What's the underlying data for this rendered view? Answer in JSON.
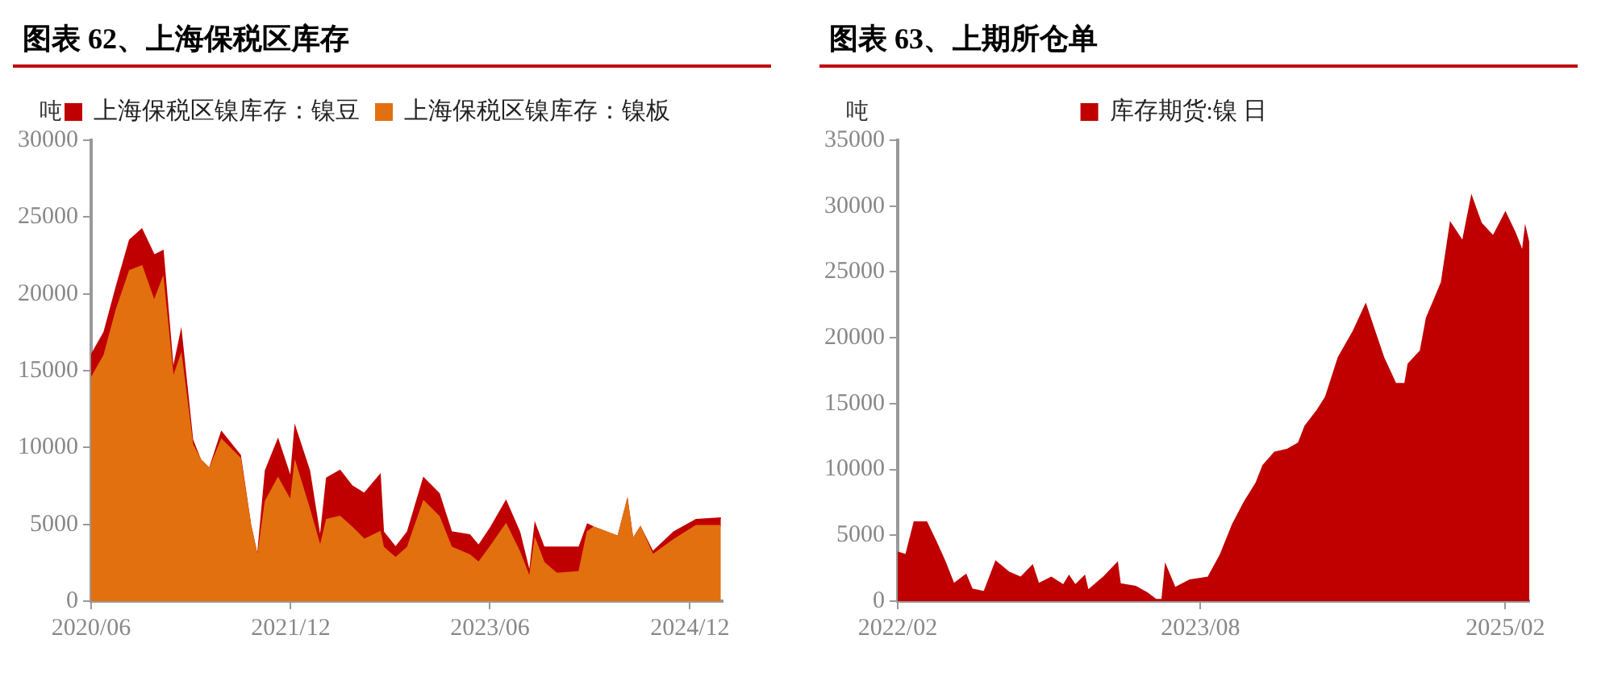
{
  "chart_data": [
    {
      "type": "area",
      "title": "图表 62、上海保税区库存",
      "ylabel": "吨",
      "stacked": true,
      "legend": "top",
      "grid": false,
      "marker": "none",
      "x": [
        "2020-06-01",
        "2020-07-07",
        "2020-08-10",
        "2020-09-15",
        "2020-10-18",
        "2020-11-21",
        "2020-12-15",
        "2021-01-12",
        "2021-02-03",
        "2021-03-06",
        "2021-03-28",
        "2021-04-22",
        "2021-05-25",
        "2021-07-15",
        "2021-08-12",
        "2021-09-01",
        "2021-09-23",
        "2021-10-27",
        "2021-12-01",
        "2021-12-13",
        "2022-01-21",
        "2022-02-20",
        "2022-03-10",
        "2022-04-15",
        "2022-05-18",
        "2022-06-21",
        "2022-08-03",
        "2022-08-12",
        "2022-09-15",
        "2022-10-18",
        "2022-12-01",
        "2023-01-12",
        "2023-02-15",
        "2023-04-06",
        "2023-05-01",
        "2023-06-01",
        "2023-07-15",
        "2023-08-21",
        "2023-09-18",
        "2023-10-03",
        "2023-10-27",
        "2023-12-01",
        "2024-02-01",
        "2024-02-24",
        "2024-03-12",
        "2024-05-18",
        "2024-06-12",
        "2024-06-27",
        "2024-07-18",
        "2024-08-21",
        "2024-10-18",
        "2024-12-18",
        "2025-02-24"
      ],
      "series": [
        {
          "name": "上海保税区镍库存：镍板",
          "color": "#e2700f",
          "values": [
            14500,
            16000,
            19000,
            21500,
            21800,
            19500,
            21000,
            14500,
            16000,
            10200,
            9200,
            8600,
            10500,
            9300,
            5000,
            2800,
            6500,
            8000,
            6500,
            9000,
            6000,
            3500,
            5300,
            5500,
            4800,
            4000,
            4500,
            3500,
            2800,
            3500,
            6500,
            5500,
            3500,
            3000,
            2500,
            3500,
            5000,
            3200,
            1500,
            4000,
            2500,
            1800,
            1900,
            4500,
            4800,
            4200,
            6500,
            4000,
            4800,
            3000,
            4000,
            4900,
            4900
          ]
        },
        {
          "name": "上海保税区镍库存：镍豆",
          "color": "#c00000",
          "values": [
            1500,
            1500,
            1500,
            2000,
            2400,
            3000,
            1800,
            500,
            1500,
            300,
            0,
            0,
            500,
            200,
            0,
            0,
            2000,
            2500,
            1500,
            2300,
            2500,
            500,
            2700,
            3000,
            2700,
            3000,
            3700,
            1000,
            700,
            1000,
            1500,
            1500,
            1000,
            1300,
            1100,
            1200,
            1500,
            1300,
            300,
            1000,
            1000,
            1700,
            1600,
            500,
            0,
            0,
            0,
            0,
            0,
            200,
            500,
            400,
            500
          ]
        }
      ],
      "xlim": [
        "2020-06-01",
        "2025-03-01"
      ],
      "xticks": [
        {
          "value": "2020-06-01",
          "label": "2020/06"
        },
        {
          "value": "2021-12-01",
          "label": "2021/12"
        },
        {
          "value": "2023-06-01",
          "label": "2023/06"
        },
        {
          "value": "2024-12-01",
          "label": "2024/12"
        }
      ],
      "ylim": [
        0,
        30000
      ],
      "yticks": [
        0,
        5000,
        10000,
        15000,
        20000,
        25000,
        30000
      ]
    },
    {
      "type": "area",
      "title": "图表 63、上期所仓单",
      "ylabel": "吨",
      "legend": "top",
      "grid": false,
      "marker": "none",
      "x": [
        "2022-02-01",
        "2022-02-16",
        "2022-03-03",
        "2022-03-25",
        "2022-04-11",
        "2022-04-27",
        "2022-05-13",
        "2022-06-04",
        "2022-06-15",
        "2022-07-07",
        "2022-07-28",
        "2022-08-20",
        "2022-09-11",
        "2022-10-02",
        "2022-10-13",
        "2022-11-05",
        "2022-11-27",
        "2022-12-07",
        "2022-12-18",
        "2023-01-04",
        "2023-01-10",
        "2023-02-07",
        "2023-03-04",
        "2023-03-09",
        "2023-04-06",
        "2023-04-27",
        "2023-05-13",
        "2023-05-24",
        "2023-05-30",
        "2023-06-16",
        "2023-07-13",
        "2023-07-30",
        "2023-08-15",
        "2023-09-06",
        "2023-09-28",
        "2023-10-19",
        "2023-11-10",
        "2023-11-22",
        "2023-12-13",
        "2024-01-04",
        "2024-01-25",
        "2024-02-06",
        "2024-02-28",
        "2024-03-14",
        "2024-04-06",
        "2024-05-03",
        "2024-05-25",
        "2024-06-10",
        "2024-06-26",
        "2024-07-18",
        "2024-08-04",
        "2024-08-10",
        "2024-09-01",
        "2024-09-12",
        "2024-09-22",
        "2024-10-09",
        "2024-10-25",
        "2024-11-16",
        "2024-12-02",
        "2024-12-19",
        "2025-01-10",
        "2025-02-01",
        "2025-02-18",
        "2025-03-04",
        "2025-03-09",
        "2025-03-16"
      ],
      "series": [
        {
          "name": "库存期货:镍 日",
          "color": "#c00000",
          "values": [
            3700,
            3500,
            6000,
            6000,
            4500,
            3000,
            1300,
            2000,
            900,
            700,
            3000,
            2200,
            1800,
            2700,
            1300,
            1800,
            1200,
            1900,
            1200,
            1900,
            800,
            1800,
            2900,
            1300,
            1100,
            600,
            100,
            100,
            2700,
            1000,
            1600,
            1700,
            1800,
            3500,
            5800,
            7500,
            9000,
            10300,
            11300,
            11500,
            12000,
            13300,
            14500,
            15500,
            18500,
            20500,
            22500,
            20500,
            18500,
            16500,
            16500,
            18000,
            19000,
            21500,
            22500,
            24200,
            28700,
            27300,
            30700,
            28700,
            27700,
            29500,
            28000,
            26500,
            28300,
            27000
          ]
        }
      ],
      "xlim": [
        "2022-02-01",
        "2025-03-16"
      ],
      "xticks": [
        {
          "value": "2022-02-01",
          "label": "2022/02"
        },
        {
          "value": "2023-08-01",
          "label": "2023/08"
        },
        {
          "value": "2025-02-01",
          "label": "2025/02"
        }
      ],
      "ylim": [
        0,
        35000
      ],
      "yticks": [
        0,
        5000,
        10000,
        15000,
        20000,
        25000,
        30000,
        35000
      ]
    }
  ]
}
